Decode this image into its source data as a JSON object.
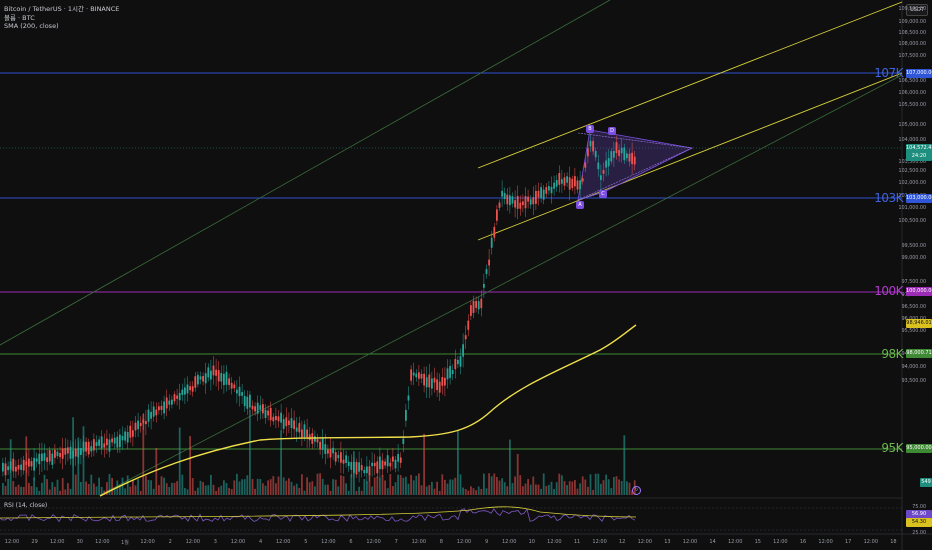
{
  "legend": {
    "symbol": "Bitcoin / TetherUS · 1시간 · BINANCE",
    "volume": "볼륨 · BTC",
    "sma": "SMA (200, close)"
  },
  "rsi_label": "RSI (14, close)",
  "currency": "USDT",
  "price_scale": [
    "109,500.00",
    "109,000.00",
    "108,500.00",
    "108,000.00",
    "107,500.00",
    "106,500.00",
    "106,000.00",
    "105,500.00",
    "105,000.00",
    "104,000.00",
    "103,500.00",
    "102,500.00",
    "102,000.00",
    "101,500.00",
    "101,000.00",
    "100,500.00",
    "99,500.00",
    "99,000.00",
    "97,500.00",
    "97,000.00",
    "96,500.00",
    "96,000.00",
    "95,500.00",
    "94,500.00",
    "94,000.00",
    "93,500.00"
  ],
  "rsi_scale": [
    "75.00",
    "50.00",
    "25.00"
  ],
  "levels": [
    {
      "label": "107K",
      "tag": "107,000.00",
      "color": "#3d63e0"
    },
    {
      "label": "103K",
      "tag": "103,000.00",
      "color": "#3d63e0"
    },
    {
      "label": "100K",
      "tag": "100,000.00",
      "color": "#b43bd1"
    },
    {
      "label": "98K",
      "tag": "98,000.71",
      "color": "#4c9a3f"
    },
    {
      "label": "95K",
      "tag": "95,000.00",
      "color": "#4c9a3f"
    }
  ],
  "price_tags": {
    "last_price": "104,572.47",
    "countdown": "24:20",
    "sma_value": "98,946.01",
    "volume_value": "549",
    "rsi_a": "56.90",
    "rsi_b": "54.30"
  },
  "pattern_points": [
    "A",
    "B",
    "C",
    "D"
  ],
  "time_axis": [
    "12:00",
    "29",
    "12:00",
    "30",
    "12:00",
    "1월",
    "12:00",
    "2",
    "12:00",
    "3",
    "12:00",
    "4",
    "12:00",
    "5",
    "12:00",
    "6",
    "12:00",
    "7",
    "12:00",
    "8",
    "12:00",
    "9",
    "12:00",
    "10",
    "12:00",
    "11",
    "12:00",
    "12",
    "12:00",
    "13",
    "12:00",
    "14",
    "12:00",
    "15",
    "12:00",
    "16",
    "12:00",
    "17",
    "12:00",
    "18"
  ],
  "colors": {
    "up": "#26a69a",
    "down": "#ef5350",
    "sma": "#f0e04a",
    "channel": "#d6cf3a",
    "rsi": "#7e57c2"
  }
}
